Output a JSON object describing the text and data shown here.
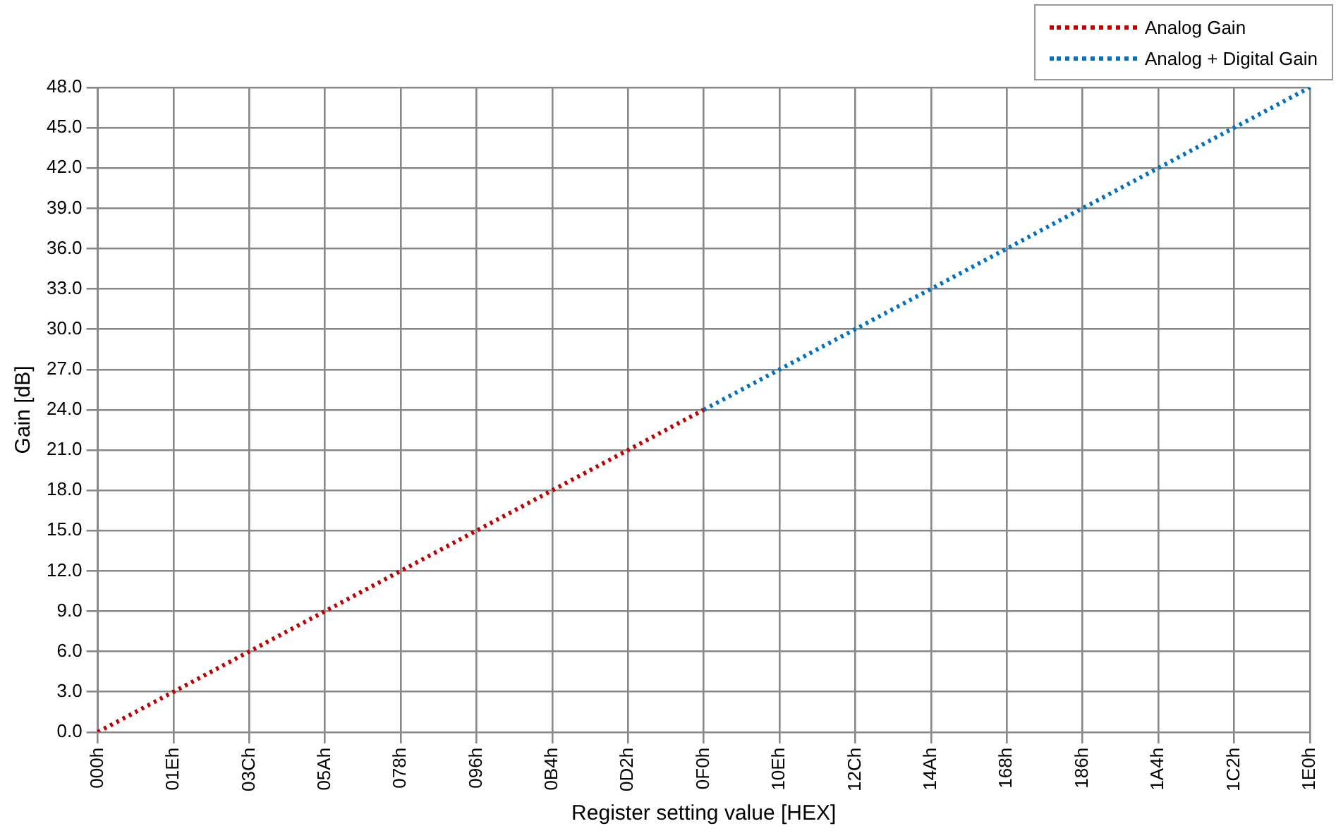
{
  "chart_data": {
    "type": "line",
    "xlabel": "Register setting value [HEX]",
    "ylabel": "Gain [dB]",
    "categories": [
      "000h",
      "01Eh",
      "03Ch",
      "05Ah",
      "078h",
      "096h",
      "0B4h",
      "0D2h",
      "0F0h",
      "10Eh",
      "12Ch",
      "14Ah",
      "168h",
      "186h",
      "1A4h",
      "1C2h",
      "1E0h"
    ],
    "series": [
      {
        "name": "Analog Gain",
        "color": "#c00000",
        "values": [
          0,
          3,
          6,
          9,
          12,
          15,
          18,
          21,
          24,
          null,
          null,
          null,
          null,
          null,
          null,
          null,
          null
        ]
      },
      {
        "name": "Analog + Digital Gain",
        "color": "#0070c0",
        "values": [
          null,
          null,
          null,
          null,
          null,
          null,
          null,
          null,
          24,
          27,
          30,
          33,
          36,
          39,
          42,
          45,
          48
        ]
      }
    ],
    "ylim": [
      0,
      48
    ],
    "yticks": [
      {
        "value": 0,
        "label": "0.0"
      },
      {
        "value": 3,
        "label": "3.0"
      },
      {
        "value": 6,
        "label": "6.0"
      },
      {
        "value": 9,
        "label": "9.0"
      },
      {
        "value": 12,
        "label": "12.0"
      },
      {
        "value": 15,
        "label": "15.0"
      },
      {
        "value": 18,
        "label": "18.0"
      },
      {
        "value": 21,
        "label": "21.0"
      },
      {
        "value": 24,
        "label": "24.0"
      },
      {
        "value": 27,
        "label": "27.0"
      },
      {
        "value": 30,
        "label": "30.0"
      },
      {
        "value": 33,
        "label": "33.0"
      },
      {
        "value": 36,
        "label": "36.0"
      },
      {
        "value": 39,
        "label": "39.0"
      },
      {
        "value": 42,
        "label": "42.0"
      },
      {
        "value": 45,
        "label": "45.0"
      },
      {
        "value": 48,
        "label": "48.0"
      }
    ],
    "grid": true,
    "legend": "top right",
    "marker": "none",
    "line_style": "dotted"
  }
}
